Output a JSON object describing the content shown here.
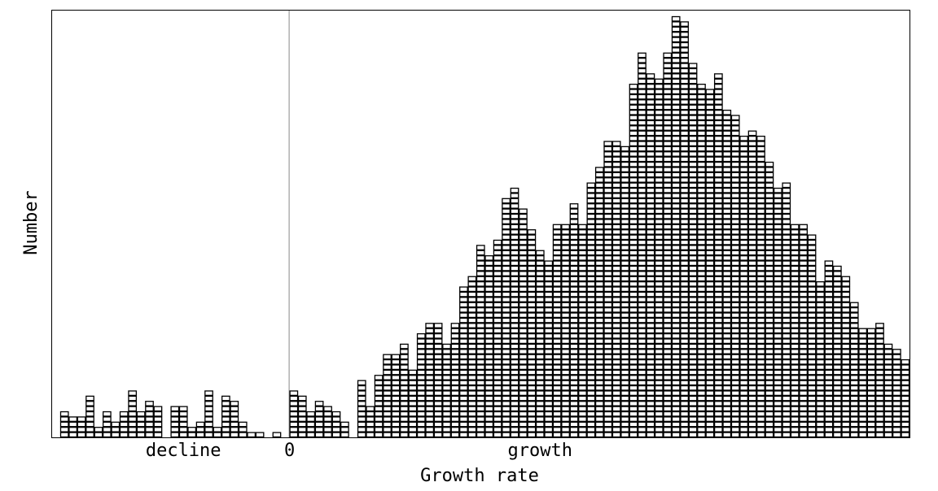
{
  "chart_data": {
    "type": "bar",
    "style": "stacked unit squares (dot histogram)",
    "xlabel": "Growth rate",
    "ylabel": "Number",
    "tick_labels": [
      {
        "text": "decline",
        "at_bin": 14.5
      },
      {
        "text": "0",
        "at_bin": 27
      },
      {
        "text": "growth",
        "at_bin": 56.5
      }
    ],
    "zero_line_bin": 27,
    "bin_count": 100,
    "counts": [
      2,
      1,
      1,
      1,
      3,
      1,
      0,
      1,
      2,
      1,
      4,
      1,
      3,
      2,
      1,
      3,
      3,
      1,
      1,
      1,
      4,
      3,
      3,
      1,
      1,
      0,
      0,
      3,
      4,
      3,
      1,
      6,
      4,
      3,
      2,
      3,
      2,
      1,
      1,
      1,
      3,
      3,
      4,
      4,
      3,
      3,
      5,
      4,
      5,
      3,
      1,
      3,
      3,
      7,
      6,
      8,
      6,
      5,
      6,
      5,
      4,
      4,
      6,
      4,
      5,
      5,
      5,
      6,
      5,
      3,
      3,
      3,
      5,
      5,
      5,
      5,
      4,
      4,
      4,
      4,
      3,
      3,
      3,
      3,
      3,
      2,
      2,
      2,
      1,
      2,
      2,
      2,
      3,
      2,
      1,
      1,
      2,
      0,
      2,
      2
    ],
    "stacked_counts": [
      2,
      2,
      2,
      4,
      1,
      2,
      4,
      2,
      5,
      4,
      3,
      3,
      2,
      3,
      1,
      3,
      2,
      5,
      4,
      2,
      2,
      2,
      1,
      4,
      6,
      5,
      4,
      4,
      3,
      3,
      3,
      4,
      5,
      6,
      6,
      7,
      3,
      2,
      6,
      5,
      8,
      5,
      7,
      6,
      4,
      5,
      2,
      5,
      7,
      3,
      2,
      6,
      8,
      6,
      5,
      4,
      2,
      5,
      3,
      5,
      3,
      5,
      5,
      4,
      4,
      5,
      5,
      2,
      5,
      4,
      2,
      3,
      5,
      3,
      4,
      3,
      2,
      2,
      3,
      4,
      4,
      5,
      4,
      2,
      2,
      2,
      3,
      2,
      3,
      1,
      1,
      2,
      2,
      3,
      3,
      2,
      1,
      0,
      0,
      0
    ],
    "heights": [
      5,
      4,
      4,
      8,
      2,
      5,
      3,
      5,
      9,
      5,
      7,
      6,
      0,
      6,
      6,
      2,
      3,
      9,
      2,
      8,
      7,
      3,
      1,
      1,
      0,
      1,
      0,
      9,
      8,
      5,
      7,
      6,
      5,
      3,
      0,
      11,
      6,
      12,
      16,
      16,
      18,
      13,
      20,
      22,
      22,
      18,
      22,
      29,
      31,
      37,
      35,
      38,
      46,
      48,
      44,
      40,
      36,
      34,
      41,
      41,
      45,
      41,
      49,
      52,
      57,
      57,
      56,
      68,
      74,
      70,
      69,
      74,
      81,
      80,
      72,
      68,
      67,
      70,
      63,
      62,
      58,
      59,
      58,
      53,
      48,
      49,
      41,
      41,
      39,
      30,
      34,
      33,
      31,
      26,
      21,
      21,
      22,
      18,
      17,
      15
    ]
  }
}
